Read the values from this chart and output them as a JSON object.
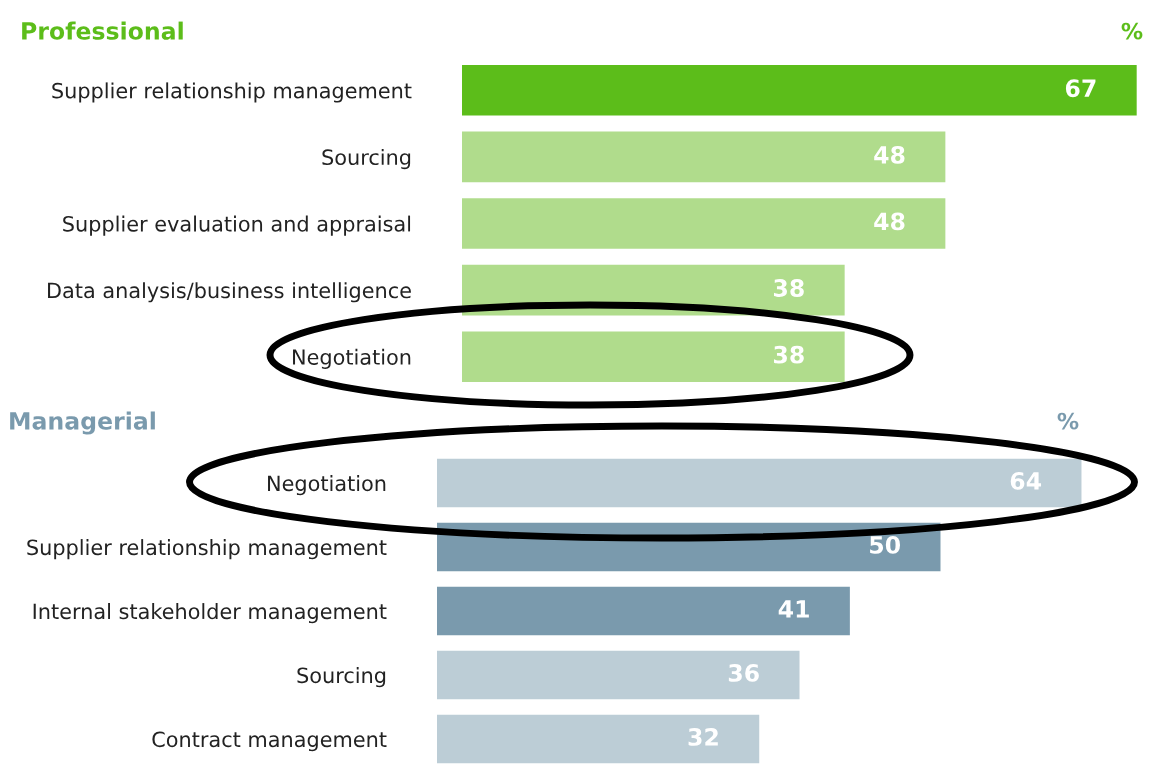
{
  "chart_data": [
    {
      "type": "bar",
      "orientation": "horizontal",
      "title": "Professional",
      "xlabel": "%",
      "data_labels": true,
      "legend": false,
      "grid": false,
      "categories": [
        "Supplier relationship management",
        "Sourcing",
        "Supplier evaluation and appraisal",
        "Data analysis/business intelligence",
        "Negotiation"
      ],
      "values": [
        67,
        48,
        48,
        38,
        38
      ],
      "colors": [
        "#5cbd1a",
        "#b0dc8c",
        "#b0dc8c",
        "#b0dc8c",
        "#b0dc8c"
      ]
    },
    {
      "type": "bar",
      "orientation": "horizontal",
      "title": "Managerial",
      "xlabel": "%",
      "data_labels": true,
      "legend": false,
      "grid": false,
      "categories": [
        "Negotiation",
        "Supplier relationship management",
        "Internal stakeholder management",
        "Sourcing",
        "Contract management"
      ],
      "values": [
        64,
        50,
        41,
        36,
        32
      ],
      "colors": [
        "#bccdd6",
        "#7a9aad",
        "#7a9aad",
        "#bccdd6",
        "#bccdd6"
      ]
    }
  ]
}
